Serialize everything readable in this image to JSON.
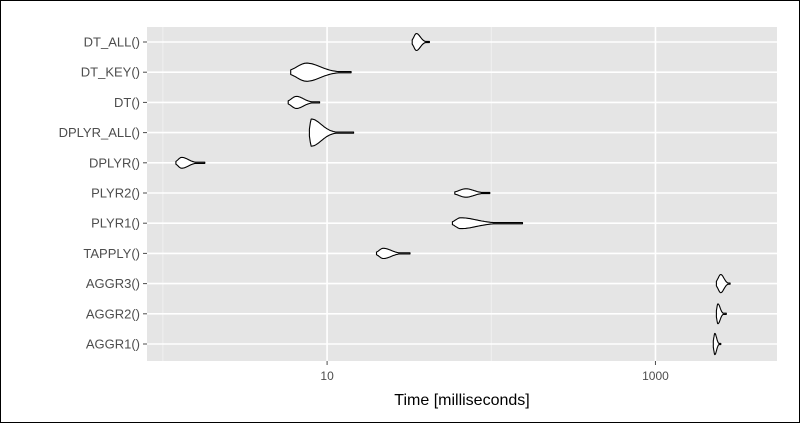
{
  "chart_data": {
    "type": "violin",
    "xlabel": "Time [milliseconds]",
    "ylabel": "",
    "x_scale": "log10",
    "xlim": [
      0.8,
      5500
    ],
    "x_ticks": [
      10,
      1000
    ],
    "x_tick_labels": [
      "10",
      "1000"
    ],
    "grid": true,
    "legend": "none",
    "categories": [
      "DT_ALL()",
      "DT_KEY()",
      "DT()",
      "DPLYR_ALL()",
      "DPLYR()",
      "PLYR2()",
      "PLYR1()",
      "TAPPLY()",
      "AGGR3()",
      "AGGR2()",
      "AGGR1()"
    ],
    "series": [
      {
        "label": "DT_ALL()",
        "min": 33,
        "max": 42,
        "median": 35,
        "half_height": 0.28
      },
      {
        "label": "DT_KEY()",
        "min": 6,
        "max": 14,
        "median": 7.5,
        "half_height": 0.3
      },
      {
        "label": "DT()",
        "min": 5.8,
        "max": 9,
        "median": 6.5,
        "half_height": 0.2
      },
      {
        "label": "DPLYR_ALL()",
        "min": 7.8,
        "max": 14.5,
        "median": 8,
        "half_height": 0.45
      },
      {
        "label": "DPLYR()",
        "min": 1.2,
        "max": 1.8,
        "median": 1.3,
        "half_height": 0.18
      },
      {
        "label": "PLYR2()",
        "min": 60,
        "max": 98,
        "median": 70,
        "half_height": 0.14
      },
      {
        "label": "PLYR1()",
        "min": 58,
        "max": 155,
        "median": 65,
        "half_height": 0.18
      },
      {
        "label": "TAPPLY()",
        "min": 20,
        "max": 32,
        "median": 22,
        "half_height": 0.17
      },
      {
        "label": "AGGR3()",
        "min": 2350,
        "max": 2850,
        "median": 2500,
        "half_height": 0.3
      },
      {
        "label": "AGGR2()",
        "min": 2350,
        "max": 2700,
        "median": 2400,
        "half_height": 0.33
      },
      {
        "label": "AGGR1()",
        "min": 2250,
        "max": 2500,
        "median": 2300,
        "half_height": 0.35
      }
    ]
  },
  "colors": {
    "panel_background": "#e5e5e5",
    "grid_major": "#ffffff",
    "grid_minor": "#f2f2f2",
    "violin_stroke": "#000000",
    "violin_fill": "#ffffff"
  }
}
